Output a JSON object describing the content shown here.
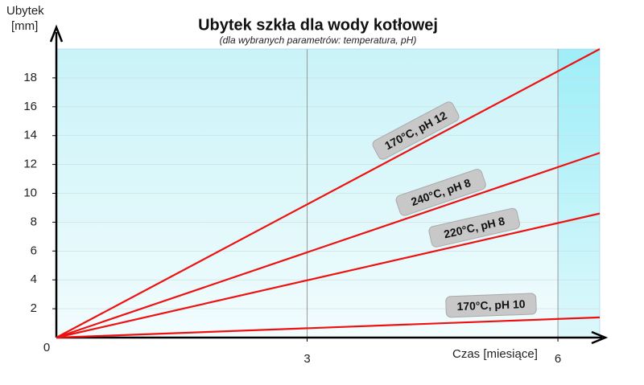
{
  "chart_data": {
    "type": "line",
    "title": "Ubytek szkła dla wody kotłowej",
    "subtitle": "(dla wybranych parametrów: temperatura, pH)",
    "y_label": [
      "Ubytek",
      "[mm]"
    ],
    "x_label": "Czas [miesiące]",
    "x": [
      0,
      6.5
    ],
    "series": [
      {
        "name": "170°C, pH 12",
        "color": "#ee1111",
        "values": [
          0,
          20
        ]
      },
      {
        "name": "240°C, pH 8",
        "color": "#ee1111",
        "values": [
          0,
          12.8
        ]
      },
      {
        "name": "220°C, pH 8",
        "color": "#ee1111",
        "values": [
          0,
          8.6
        ]
      },
      {
        "name": "170°C, pH 10",
        "color": "#ee1111",
        "values": [
          0,
          1.4
        ]
      }
    ],
    "xlim": [
      0,
      6.5
    ],
    "ylim": [
      0,
      20
    ],
    "xticks": [
      3,
      6
    ],
    "yticks": [
      0,
      2,
      4,
      6,
      8,
      10,
      12,
      14,
      16,
      18
    ],
    "grid": true
  }
}
